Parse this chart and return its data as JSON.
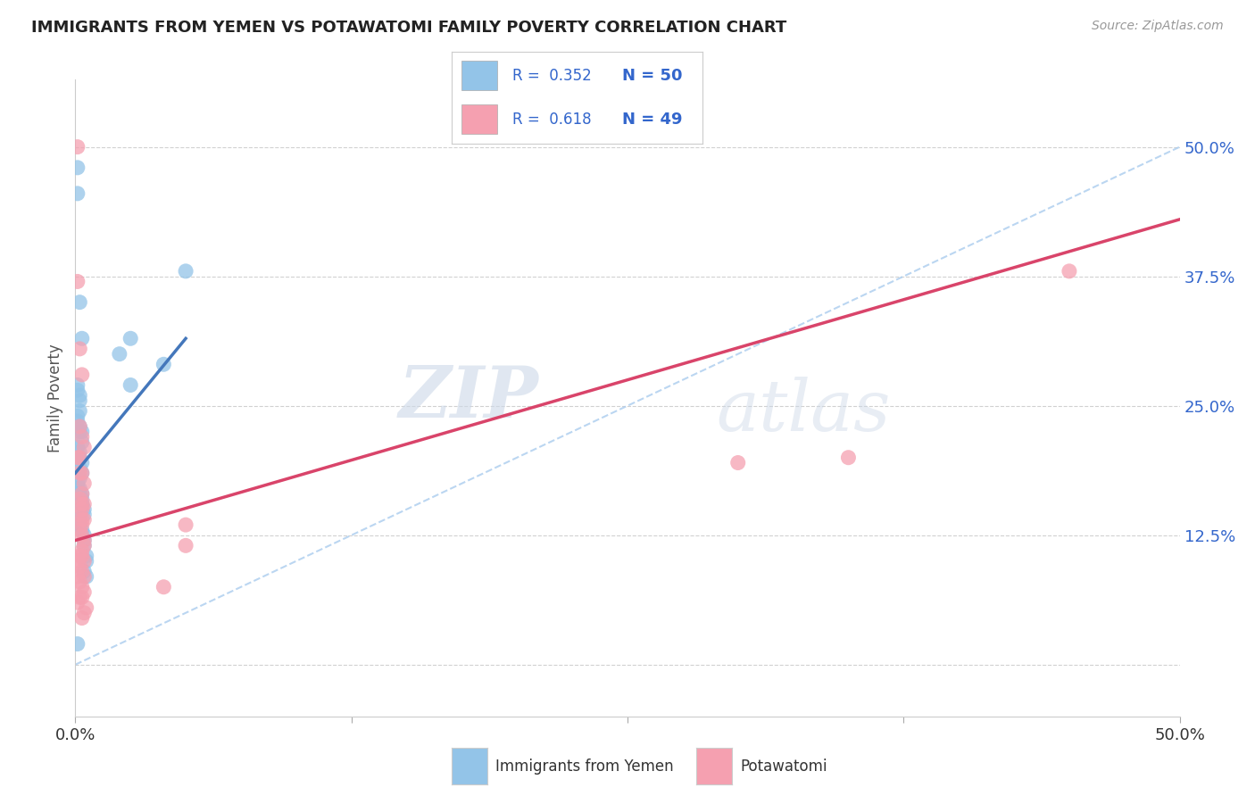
{
  "title": "IMMIGRANTS FROM YEMEN VS POTAWATOMI FAMILY POVERTY CORRELATION CHART",
  "source": "Source: ZipAtlas.com",
  "ylabel": "Family Poverty",
  "xlim": [
    0.0,
    0.5
  ],
  "ylim": [
    -0.05,
    0.565
  ],
  "yticks": [
    0.0,
    0.125,
    0.25,
    0.375,
    0.5
  ],
  "ytick_labels": [
    "",
    "12.5%",
    "25.0%",
    "37.5%",
    "50.0%"
  ],
  "xticks": [
    0.0,
    0.125,
    0.25,
    0.375,
    0.5
  ],
  "xtick_labels": [
    "0.0%",
    "",
    "",
    "",
    "50.0%"
  ],
  "blue_color": "#93c4e8",
  "pink_color": "#f5a0b0",
  "blue_line_color": "#4477bb",
  "pink_line_color": "#d9446a",
  "diag_line_color": "#aaccee",
  "scatter_blue": [
    [
      0.001,
      0.455
    ],
    [
      0.001,
      0.48
    ],
    [
      0.002,
      0.35
    ],
    [
      0.003,
      0.315
    ],
    [
      0.001,
      0.27
    ],
    [
      0.001,
      0.265
    ],
    [
      0.002,
      0.255
    ],
    [
      0.002,
      0.26
    ],
    [
      0.002,
      0.245
    ],
    [
      0.001,
      0.24
    ],
    [
      0.001,
      0.235
    ],
    [
      0.002,
      0.23
    ],
    [
      0.002,
      0.225
    ],
    [
      0.003,
      0.225
    ],
    [
      0.003,
      0.215
    ],
    [
      0.001,
      0.21
    ],
    [
      0.002,
      0.205
    ],
    [
      0.002,
      0.2
    ],
    [
      0.003,
      0.195
    ],
    [
      0.002,
      0.19
    ],
    [
      0.003,
      0.185
    ],
    [
      0.002,
      0.18
    ],
    [
      0.001,
      0.175
    ],
    [
      0.001,
      0.17
    ],
    [
      0.002,
      0.17
    ],
    [
      0.002,
      0.165
    ],
    [
      0.003,
      0.165
    ],
    [
      0.003,
      0.16
    ],
    [
      0.003,
      0.155
    ],
    [
      0.003,
      0.155
    ],
    [
      0.004,
      0.15
    ],
    [
      0.004,
      0.145
    ],
    [
      0.001,
      0.145
    ],
    [
      0.001,
      0.14
    ],
    [
      0.002,
      0.135
    ],
    [
      0.002,
      0.135
    ],
    [
      0.003,
      0.13
    ],
    [
      0.004,
      0.125
    ],
    [
      0.004,
      0.12
    ],
    [
      0.004,
      0.115
    ],
    [
      0.005,
      0.105
    ],
    [
      0.005,
      0.1
    ],
    [
      0.004,
      0.09
    ],
    [
      0.005,
      0.085
    ],
    [
      0.02,
      0.3
    ],
    [
      0.025,
      0.315
    ],
    [
      0.025,
      0.27
    ],
    [
      0.04,
      0.29
    ],
    [
      0.05,
      0.38
    ],
    [
      0.001,
      0.02
    ]
  ],
  "scatter_pink": [
    [
      0.001,
      0.5
    ],
    [
      0.001,
      0.37
    ],
    [
      0.002,
      0.305
    ],
    [
      0.003,
      0.28
    ],
    [
      0.002,
      0.23
    ],
    [
      0.003,
      0.22
    ],
    [
      0.004,
      0.21
    ],
    [
      0.001,
      0.2
    ],
    [
      0.002,
      0.2
    ],
    [
      0.002,
      0.185
    ],
    [
      0.003,
      0.185
    ],
    [
      0.004,
      0.175
    ],
    [
      0.003,
      0.165
    ],
    [
      0.002,
      0.16
    ],
    [
      0.003,
      0.155
    ],
    [
      0.004,
      0.155
    ],
    [
      0.003,
      0.15
    ],
    [
      0.002,
      0.145
    ],
    [
      0.003,
      0.14
    ],
    [
      0.004,
      0.14
    ],
    [
      0.003,
      0.135
    ],
    [
      0.002,
      0.13
    ],
    [
      0.003,
      0.125
    ],
    [
      0.004,
      0.12
    ],
    [
      0.004,
      0.115
    ],
    [
      0.003,
      0.11
    ],
    [
      0.002,
      0.105
    ],
    [
      0.003,
      0.105
    ],
    [
      0.004,
      0.1
    ],
    [
      0.001,
      0.1
    ],
    [
      0.002,
      0.095
    ],
    [
      0.003,
      0.09
    ],
    [
      0.004,
      0.085
    ],
    [
      0.001,
      0.085
    ],
    [
      0.002,
      0.08
    ],
    [
      0.003,
      0.075
    ],
    [
      0.004,
      0.07
    ],
    [
      0.002,
      0.065
    ],
    [
      0.003,
      0.065
    ],
    [
      0.001,
      0.06
    ],
    [
      0.005,
      0.055
    ],
    [
      0.004,
      0.05
    ],
    [
      0.003,
      0.045
    ],
    [
      0.35,
      0.2
    ],
    [
      0.3,
      0.195
    ],
    [
      0.05,
      0.135
    ],
    [
      0.05,
      0.115
    ],
    [
      0.04,
      0.075
    ],
    [
      0.45,
      0.38
    ]
  ],
  "blue_line": [
    [
      0.0,
      0.185
    ],
    [
      0.05,
      0.315
    ]
  ],
  "pink_line": [
    [
      0.0,
      0.12
    ],
    [
      0.5,
      0.43
    ]
  ],
  "diag_line": [
    [
      0.0,
      0.0
    ],
    [
      0.5,
      0.5
    ]
  ],
  "watermark_zip": "ZIP",
  "watermark_atlas": "atlas",
  "background": "#ffffff",
  "grid_color": "#cccccc",
  "tick_color": "#3366cc"
}
